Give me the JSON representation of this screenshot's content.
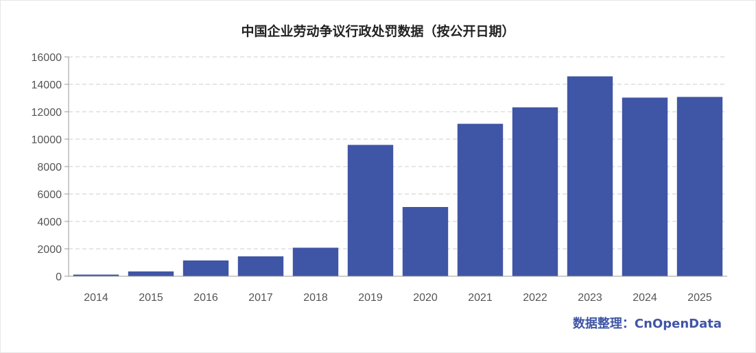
{
  "credit": "数据整理：CnOpenData",
  "colors": {
    "bar": "#3f55a5",
    "grid": "#cccccc",
    "axis": "#999999",
    "credit": "#3f55a5"
  },
  "chart_data": {
    "type": "bar",
    "title": "中国企业劳动争议行政处罚数据（按公开日期）",
    "xlabel": "",
    "ylabel": "",
    "categories": [
      "2014",
      "2015",
      "2016",
      "2017",
      "2018",
      "2019",
      "2020",
      "2021",
      "2022",
      "2023",
      "2024",
      "2025"
    ],
    "values": [
      120,
      350,
      1150,
      1450,
      2080,
      9580,
      5050,
      11120,
      12320,
      14580,
      13030,
      13080
    ],
    "ylim": [
      0,
      16000
    ],
    "yticks": [
      0,
      2000,
      4000,
      6000,
      8000,
      10000,
      12000,
      14000,
      16000
    ],
    "grid": true,
    "legend": "none"
  }
}
